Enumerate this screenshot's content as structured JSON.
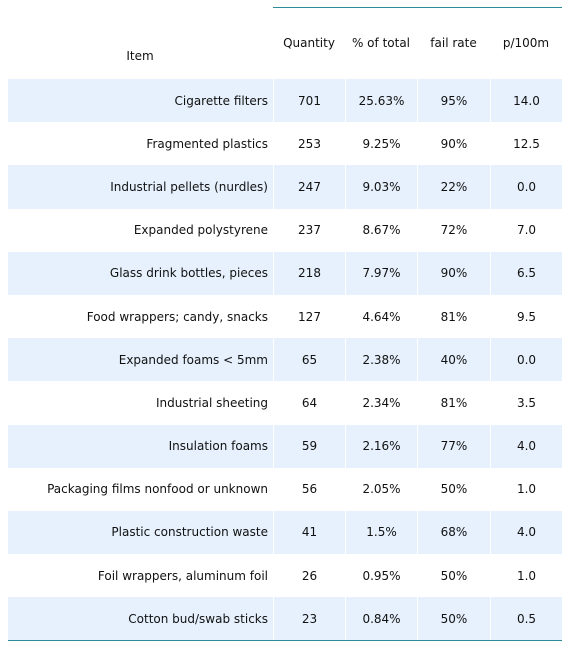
{
  "chart_data": {
    "type": "table",
    "columns": [
      "Item",
      "Quantity",
      "% of total",
      "fail rate",
      "p/100m"
    ],
    "rows": [
      {
        "item": "Cigarette filters",
        "quantity": "701",
        "pct_total": "25.63%",
        "fail_rate": "95%",
        "p100m": "14.0"
      },
      {
        "item": "Fragmented plastics",
        "quantity": "253",
        "pct_total": "9.25%",
        "fail_rate": "90%",
        "p100m": "12.5"
      },
      {
        "item": "Industrial pellets (nurdles)",
        "quantity": "247",
        "pct_total": "9.03%",
        "fail_rate": "22%",
        "p100m": "0.0"
      },
      {
        "item": "Expanded polystyrene",
        "quantity": "237",
        "pct_total": "8.67%",
        "fail_rate": "72%",
        "p100m": "7.0"
      },
      {
        "item": "Glass drink bottles, pieces",
        "quantity": "218",
        "pct_total": "7.97%",
        "fail_rate": "90%",
        "p100m": "6.5"
      },
      {
        "item": "Food wrappers; candy, snacks",
        "quantity": "127",
        "pct_total": "4.64%",
        "fail_rate": "81%",
        "p100m": "9.5"
      },
      {
        "item": "Expanded foams < 5mm",
        "quantity": "65",
        "pct_total": "2.38%",
        "fail_rate": "40%",
        "p100m": "0.0"
      },
      {
        "item": "Industrial sheeting",
        "quantity": "64",
        "pct_total": "2.34%",
        "fail_rate": "81%",
        "p100m": "3.5"
      },
      {
        "item": "Insulation foams",
        "quantity": "59",
        "pct_total": "2.16%",
        "fail_rate": "77%",
        "p100m": "4.0"
      },
      {
        "item": "Packaging films nonfood or unknown",
        "quantity": "56",
        "pct_total": "2.05%",
        "fail_rate": "50%",
        "p100m": "1.0"
      },
      {
        "item": "Plastic construction waste",
        "quantity": "41",
        "pct_total": "1.5%",
        "fail_rate": "68%",
        "p100m": "4.0"
      },
      {
        "item": "Foil wrappers, aluminum foil",
        "quantity": "26",
        "pct_total": "0.95%",
        "fail_rate": "50%",
        "p100m": "1.0"
      },
      {
        "item": "Cotton bud/swab sticks",
        "quantity": "23",
        "pct_total": "0.84%",
        "fail_rate": "50%",
        "p100m": "0.5"
      }
    ],
    "colors": {
      "row_shade": "#e6f1fd",
      "rule": "#2a8c98"
    }
  }
}
